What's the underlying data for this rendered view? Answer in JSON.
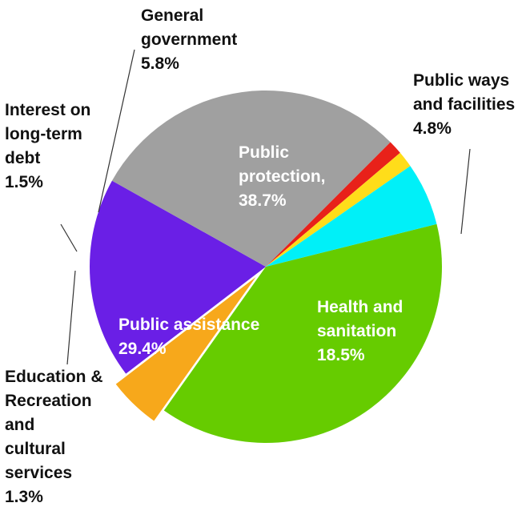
{
  "chart_data": {
    "type": "pie",
    "title": "",
    "legend": "none",
    "slices": [
      {
        "name": "Public protection,",
        "label_lines": [
          "Public",
          "protection,",
          "38.7%"
        ],
        "value": 38.7,
        "color": "#66cc00"
      },
      {
        "name": "Public ways and facilities",
        "label_lines": [
          "Public ways",
          "and facilities",
          "4.8%"
        ],
        "value": 4.8,
        "color": "#f7a81b"
      },
      {
        "name": "Health and sanitation",
        "label_lines": [
          "Health and",
          "sanitation",
          "18.5%"
        ],
        "value": 18.5,
        "color": "#6a1fe6"
      },
      {
        "name": "Public assistance",
        "label_lines": [
          "Public assistance",
          "29.4%"
        ],
        "value": 29.4,
        "color": "#a0a0a0"
      },
      {
        "name": "Education & Recreation and cultural services",
        "label_lines": [
          "Education &",
          "Recreation",
          "and",
          "cultural",
          "services",
          "1.3%"
        ],
        "value": 1.3,
        "color": "#e8211a"
      },
      {
        "name": "Interest on long-term debt",
        "label_lines": [
          "Interest on",
          "long-term",
          "debt",
          "1.5%"
        ],
        "value": 1.5,
        "color": "#ffdd1a"
      },
      {
        "name": "General government",
        "label_lines": [
          "General",
          "government",
          "5.8%"
        ],
        "value": 5.8,
        "color": "#00f0f8"
      }
    ]
  }
}
